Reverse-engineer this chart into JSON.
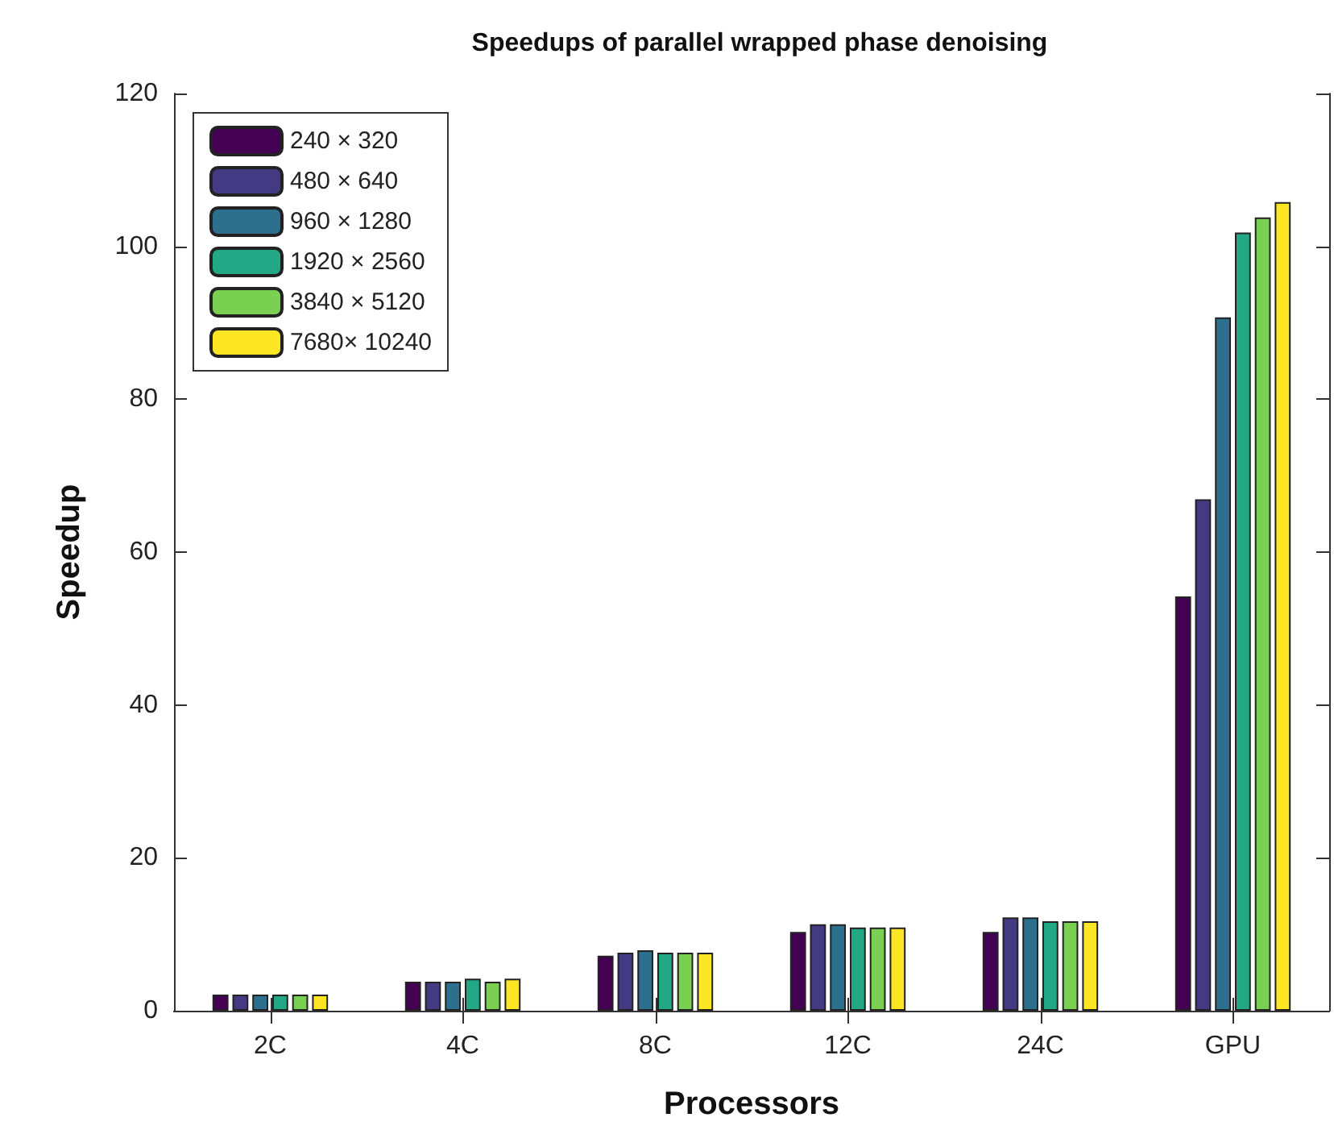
{
  "chart_data": {
    "type": "bar",
    "title": "Speedups of parallel wrapped phase denoising",
    "xlabel": "Processors",
    "ylabel": "Speedup",
    "categories": [
      "2C",
      "4C",
      "8C",
      "12C",
      "24C",
      "GPU"
    ],
    "series": [
      {
        "name": "240 × 320",
        "color": "#440154",
        "values": [
          2.1,
          3.8,
          7.2,
          10.3,
          10.3,
          54.2
        ]
      },
      {
        "name": "480 × 640",
        "color": "#443a83",
        "values": [
          2.1,
          3.8,
          7.6,
          11.3,
          12.2,
          66.9
        ]
      },
      {
        "name": "960 × 1280",
        "color": "#2d708e",
        "values": [
          2.1,
          3.8,
          7.9,
          11.3,
          12.2,
          90.7
        ]
      },
      {
        "name": "1920 × 2560",
        "color": "#22a884",
        "values": [
          2.1,
          4.2,
          7.6,
          10.9,
          11.7,
          101.8
        ]
      },
      {
        "name": "3840 × 5120",
        "color": "#7ad151",
        "values": [
          2.1,
          3.8,
          7.6,
          10.9,
          11.7,
          103.8
        ]
      },
      {
        "name": "7680× 10240",
        "color": "#fde725",
        "values": [
          2.1,
          4.2,
          7.6,
          10.9,
          11.7,
          105.8
        ]
      }
    ],
    "ylim": [
      0,
      120
    ],
    "yticks": [
      0,
      20,
      40,
      60,
      80,
      100,
      120
    ],
    "grid": false,
    "legend": "top left"
  }
}
